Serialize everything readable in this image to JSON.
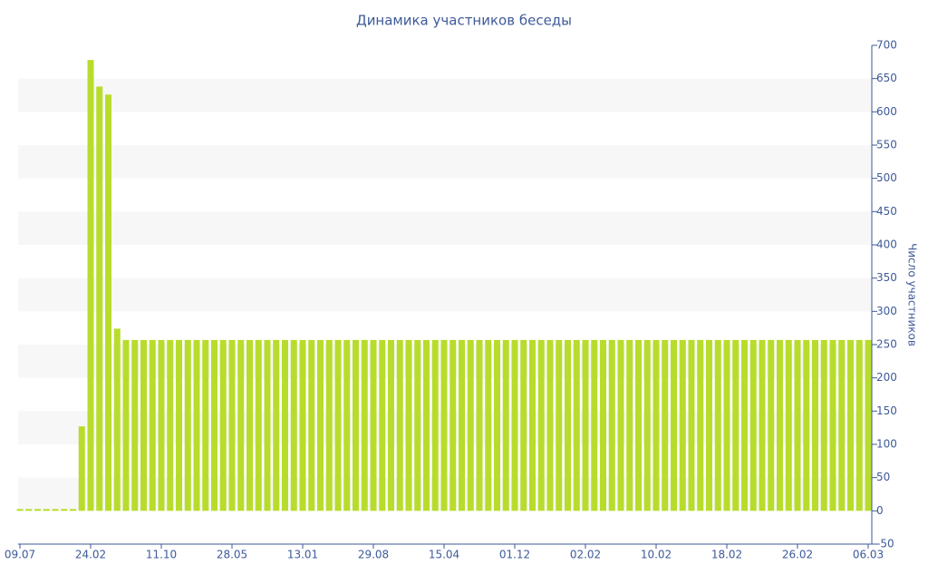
{
  "chart_data": {
    "type": "bar",
    "title": "Динамика участников беседы",
    "y_label": "Число участников",
    "categories": [
      "09.07",
      null,
      null,
      null,
      null,
      null,
      null,
      null,
      "24.02",
      null,
      null,
      null,
      null,
      null,
      null,
      null,
      "11.10",
      null,
      null,
      null,
      null,
      null,
      null,
      null,
      "28.05",
      null,
      null,
      null,
      null,
      null,
      null,
      null,
      "13.01",
      null,
      null,
      null,
      null,
      null,
      null,
      null,
      "29.08",
      null,
      null,
      null,
      null,
      null,
      null,
      null,
      "15.04",
      null,
      null,
      null,
      null,
      null,
      null,
      null,
      "01.12",
      null,
      null,
      null,
      null,
      null,
      null,
      null,
      "02.02",
      null,
      null,
      null,
      null,
      null,
      null,
      null,
      "10.02",
      null,
      null,
      null,
      null,
      null,
      null,
      null,
      "18.02",
      null,
      null,
      null,
      null,
      null,
      null,
      null,
      "26.02",
      null,
      null,
      null,
      null,
      null,
      null,
      null,
      "06.03"
    ],
    "values": [
      0,
      0,
      0,
      0,
      0,
      0,
      0,
      127,
      678,
      638,
      626,
      274,
      257,
      257,
      257,
      257,
      257,
      257,
      257,
      257,
      257,
      257,
      257,
      257,
      257,
      257,
      257,
      257,
      257,
      257,
      257,
      257,
      257,
      257,
      257,
      257,
      257,
      257,
      257,
      257,
      257,
      257,
      257,
      257,
      257,
      257,
      257,
      257,
      257,
      257,
      257,
      257,
      257,
      257,
      257,
      257,
      257,
      257,
      257,
      257,
      257,
      257,
      257,
      257,
      257,
      257,
      257,
      257,
      257,
      257,
      257,
      257,
      257,
      257,
      257,
      257,
      257,
      257,
      257,
      257,
      257,
      257,
      257,
      257,
      257,
      257,
      257,
      257,
      257,
      257,
      257,
      257,
      257,
      257,
      257,
      257,
      257
    ],
    "color": "#b8dc2c",
    "ylim": [
      -50,
      700
    ],
    "yticks": [
      -50,
      0,
      50,
      100,
      150,
      200,
      250,
      300,
      350,
      400,
      450,
      500,
      550,
      600,
      650,
      700
    ],
    "y_axis_side": "right",
    "banded_grid": true
  }
}
